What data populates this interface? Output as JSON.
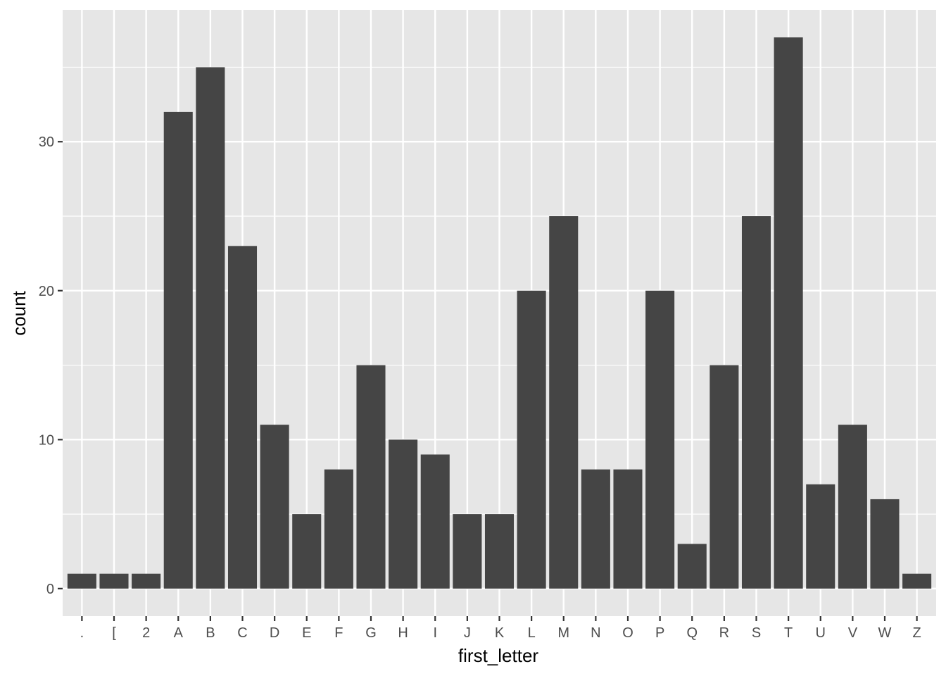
{
  "chart_data": {
    "type": "bar",
    "title": "",
    "xlabel": "first_letter",
    "ylabel": "count",
    "categories": [
      ".",
      "[",
      "2",
      "A",
      "B",
      "C",
      "D",
      "E",
      "F",
      "G",
      "H",
      "I",
      "J",
      "K",
      "L",
      "M",
      "N",
      "O",
      "P",
      "Q",
      "R",
      "S",
      "T",
      "U",
      "V",
      "W",
      "Z"
    ],
    "values": [
      1,
      1,
      1,
      32,
      35,
      23,
      11,
      5,
      8,
      15,
      10,
      9,
      5,
      5,
      20,
      25,
      8,
      8,
      20,
      3,
      15,
      25,
      37,
      7,
      11,
      6,
      1
    ],
    "ylim": [
      -1.85,
      38.85
    ],
    "yticks": [
      0,
      10,
      20,
      30
    ],
    "yticks_minor": [
      5,
      15,
      25,
      35
    ],
    "grid": true,
    "colors": {
      "panel_background": "#e6e6e6",
      "grid": "#ffffff",
      "bar_fill": "#454545",
      "tick_label": "#4d4d4d",
      "tick_mark": "#333333",
      "axis_title": "#000000"
    }
  }
}
